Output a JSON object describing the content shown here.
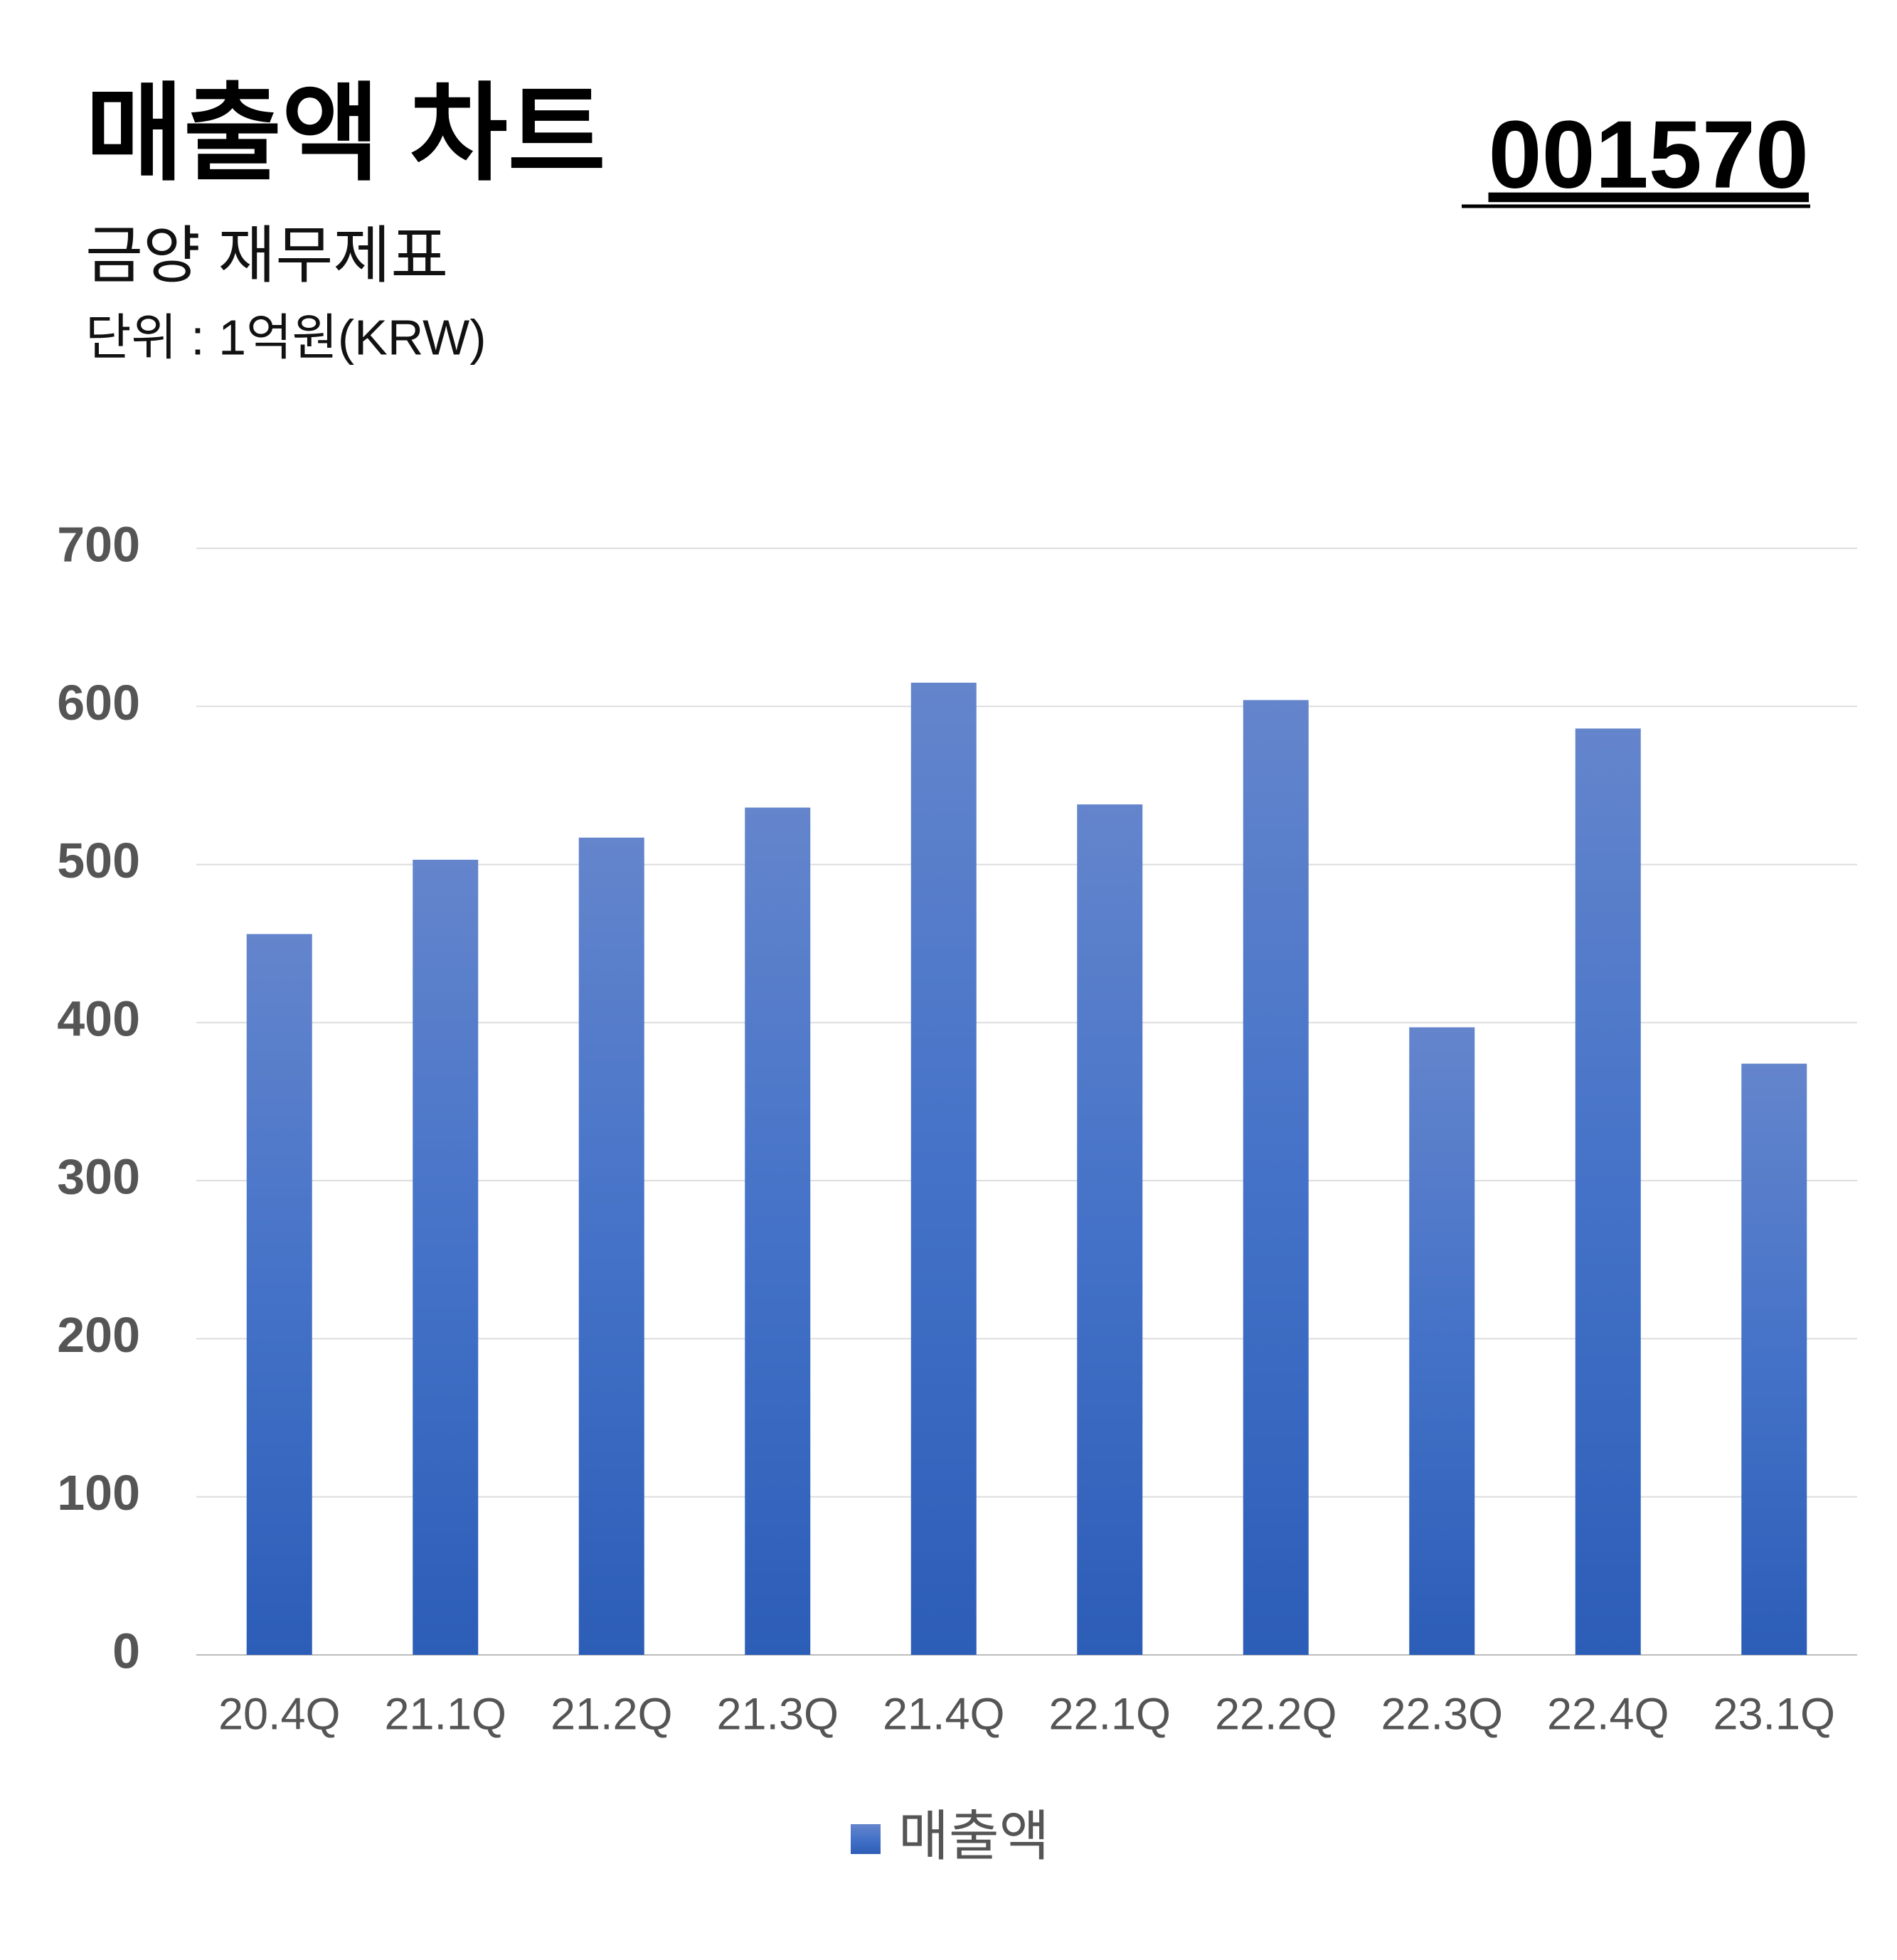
{
  "chart_data": {
    "type": "bar",
    "title": "매출액 차트",
    "code": "001570",
    "subtitle": "금양 재무제표",
    "unit": "단위 : 1억원(KRW)",
    "categories": [
      "20.4Q",
      "21.1Q",
      "21.2Q",
      "21.3Q",
      "21.4Q",
      "22.1Q",
      "22.2Q",
      "22.3Q",
      "22.4Q",
      "23.1Q"
    ],
    "series": [
      {
        "name": "매출액",
        "color": "#3d6cc6",
        "values": [
          456,
          503,
          517,
          536,
          615,
          538,
          604,
          397,
          586,
          374
        ]
      }
    ],
    "ylim": [
      0,
      700
    ],
    "yticks": [
      0,
      100,
      200,
      300,
      400,
      500,
      600,
      700
    ],
    "grid": true,
    "legend": "bottom"
  }
}
